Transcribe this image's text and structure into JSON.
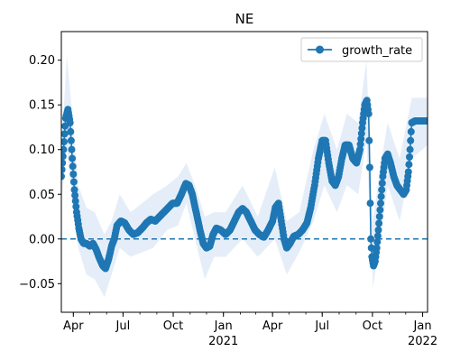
{
  "chart_data": {
    "type": "line",
    "title": "NE",
    "xlabel": "",
    "ylabel": "",
    "x_range": [
      "2020-03-10",
      "2022-01-10"
    ],
    "ylim": [
      -0.082,
      0.232
    ],
    "y_ticks": [
      -0.05,
      0.0,
      0.05,
      0.1,
      0.15,
      0.2
    ],
    "y_tick_labels": [
      "−0.05",
      "0.00",
      "0.05",
      "0.10",
      "0.15",
      "0.20"
    ],
    "x_ticks": [
      {
        "date": "2020-04-01",
        "label": "Apr",
        "sublabel": ""
      },
      {
        "date": "2020-07-01",
        "label": "Jul",
        "sublabel": ""
      },
      {
        "date": "2020-10-01",
        "label": "Oct",
        "sublabel": ""
      },
      {
        "date": "2021-01-01",
        "label": "Jan",
        "sublabel": "2021"
      },
      {
        "date": "2021-04-01",
        "label": "Apr",
        "sublabel": ""
      },
      {
        "date": "2021-07-01",
        "label": "Jul",
        "sublabel": ""
      },
      {
        "date": "2021-10-01",
        "label": "Oct",
        "sublabel": ""
      },
      {
        "date": "2022-01-01",
        "label": "Jan",
        "sublabel": "2022"
      }
    ],
    "grid": false,
    "legend_position": "top-right",
    "reference_line": {
      "y": 0.0,
      "style": "dashed",
      "color": "#1f77b4"
    },
    "colors": {
      "series": "#1f77b4",
      "band": "#dce8f5"
    },
    "series": [
      {
        "name": "growth_rate",
        "marker": "circle",
        "points": [
          [
            "2020-03-10",
            0.07
          ],
          [
            "2020-03-14",
            0.1
          ],
          [
            "2020-03-18",
            0.135
          ],
          [
            "2020-03-22",
            0.145
          ],
          [
            "2020-03-26",
            0.13
          ],
          [
            "2020-03-30",
            0.09
          ],
          [
            "2020-04-03",
            0.055
          ],
          [
            "2020-04-07",
            0.03
          ],
          [
            "2020-04-11",
            0.012
          ],
          [
            "2020-04-15",
            0.0
          ],
          [
            "2020-04-20",
            -0.005
          ],
          [
            "2020-04-25",
            -0.005
          ],
          [
            "2020-05-01",
            -0.008
          ],
          [
            "2020-05-07",
            -0.005
          ],
          [
            "2020-05-13",
            -0.012
          ],
          [
            "2020-05-19",
            -0.022
          ],
          [
            "2020-05-25",
            -0.03
          ],
          [
            "2020-05-30",
            -0.033
          ],
          [
            "2020-06-05",
            -0.022
          ],
          [
            "2020-06-10",
            -0.008
          ],
          [
            "2020-06-15",
            0.0
          ],
          [
            "2020-06-20",
            0.015
          ],
          [
            "2020-06-27",
            0.02
          ],
          [
            "2020-07-04",
            0.018
          ],
          [
            "2020-07-12",
            0.01
          ],
          [
            "2020-07-20",
            0.005
          ],
          [
            "2020-07-28",
            0.007
          ],
          [
            "2020-08-05",
            0.012
          ],
          [
            "2020-08-13",
            0.018
          ],
          [
            "2020-08-21",
            0.022
          ],
          [
            "2020-08-29",
            0.02
          ],
          [
            "2020-09-06",
            0.025
          ],
          [
            "2020-09-14",
            0.03
          ],
          [
            "2020-09-22",
            0.035
          ],
          [
            "2020-09-30",
            0.04
          ],
          [
            "2020-10-08",
            0.04
          ],
          [
            "2020-10-16",
            0.05
          ],
          [
            "2020-10-24",
            0.062
          ],
          [
            "2020-10-30",
            0.06
          ],
          [
            "2020-11-05",
            0.05
          ],
          [
            "2020-11-12",
            0.03
          ],
          [
            "2020-11-19",
            0.01
          ],
          [
            "2020-11-25",
            -0.005
          ],
          [
            "2020-12-01",
            -0.01
          ],
          [
            "2020-12-07",
            -0.008
          ],
          [
            "2020-12-13",
            0.005
          ],
          [
            "2020-12-19",
            0.012
          ],
          [
            "2020-12-27",
            0.01
          ],
          [
            "2021-01-05",
            0.005
          ],
          [
            "2021-01-13",
            0.01
          ],
          [
            "2021-01-21",
            0.02
          ],
          [
            "2021-01-29",
            0.03
          ],
          [
            "2021-02-05",
            0.034
          ],
          [
            "2021-02-12",
            0.03
          ],
          [
            "2021-02-20",
            0.02
          ],
          [
            "2021-02-28",
            0.01
          ],
          [
            "2021-03-08",
            0.005
          ],
          [
            "2021-03-16",
            0.002
          ],
          [
            "2021-03-24",
            0.01
          ],
          [
            "2021-04-01",
            0.02
          ],
          [
            "2021-04-06",
            0.035
          ],
          [
            "2021-04-12",
            0.04
          ],
          [
            "2021-04-17",
            0.02
          ],
          [
            "2021-04-22",
            0.0
          ],
          [
            "2021-04-27",
            -0.01
          ],
          [
            "2021-05-03",
            -0.005
          ],
          [
            "2021-05-10",
            0.003
          ],
          [
            "2021-05-18",
            0.005
          ],
          [
            "2021-05-26",
            0.01
          ],
          [
            "2021-06-03",
            0.018
          ],
          [
            "2021-06-10",
            0.035
          ],
          [
            "2021-06-17",
            0.06
          ],
          [
            "2021-06-24",
            0.09
          ],
          [
            "2021-07-01",
            0.11
          ],
          [
            "2021-07-07",
            0.11
          ],
          [
            "2021-07-13",
            0.085
          ],
          [
            "2021-07-19",
            0.065
          ],
          [
            "2021-07-25",
            0.06
          ],
          [
            "2021-07-31",
            0.07
          ],
          [
            "2021-08-06",
            0.09
          ],
          [
            "2021-08-12",
            0.105
          ],
          [
            "2021-08-19",
            0.105
          ],
          [
            "2021-08-26",
            0.09
          ],
          [
            "2021-09-02",
            0.085
          ],
          [
            "2021-09-08",
            0.1
          ],
          [
            "2021-09-13",
            0.13
          ],
          [
            "2021-09-17",
            0.15
          ],
          [
            "2021-09-21",
            0.155
          ],
          [
            "2021-09-24",
            0.14
          ],
          [
            "2021-09-26",
            0.08
          ],
          [
            "2021-09-28",
            0.0
          ],
          [
            "2021-09-30",
            -0.02
          ],
          [
            "2021-10-03",
            -0.03
          ],
          [
            "2021-10-06",
            -0.025
          ],
          [
            "2021-10-09",
            -0.01
          ],
          [
            "2021-10-12",
            0.01
          ],
          [
            "2021-10-16",
            0.04
          ],
          [
            "2021-10-20",
            0.07
          ],
          [
            "2021-10-24",
            0.09
          ],
          [
            "2021-10-29",
            0.095
          ],
          [
            "2021-11-03",
            0.085
          ],
          [
            "2021-11-09",
            0.07
          ],
          [
            "2021-11-15",
            0.06
          ],
          [
            "2021-11-21",
            0.055
          ],
          [
            "2021-11-27",
            0.05
          ],
          [
            "2021-12-02",
            0.055
          ],
          [
            "2021-12-06",
            0.075
          ],
          [
            "2021-12-09",
            0.1
          ],
          [
            "2021-12-12",
            0.13
          ],
          [
            "2021-12-18",
            0.132
          ],
          [
            "2021-12-26",
            0.132
          ],
          [
            "2022-01-03",
            0.132
          ],
          [
            "2022-01-10",
            0.132
          ]
        ],
        "band": [
          [
            "2020-03-10",
            0.04,
            0.1
          ],
          [
            "2020-03-20",
            0.1,
            0.205
          ],
          [
            "2020-03-30",
            0.05,
            0.14
          ],
          [
            "2020-04-10",
            -0.01,
            0.06
          ],
          [
            "2020-04-25",
            -0.04,
            0.035
          ],
          [
            "2020-05-10",
            -0.045,
            0.03
          ],
          [
            "2020-05-28",
            -0.065,
            0.005
          ],
          [
            "2020-06-10",
            -0.04,
            0.02
          ],
          [
            "2020-06-25",
            -0.01,
            0.05
          ],
          [
            "2020-07-15",
            -0.02,
            0.03
          ],
          [
            "2020-08-05",
            -0.015,
            0.04
          ],
          [
            "2020-08-25",
            -0.01,
            0.05
          ],
          [
            "2020-09-20",
            0.01,
            0.06
          ],
          [
            "2020-10-10",
            0.015,
            0.07
          ],
          [
            "2020-10-25",
            0.04,
            0.085
          ],
          [
            "2020-11-10",
            0.0,
            0.06
          ],
          [
            "2020-11-28",
            -0.045,
            0.025
          ],
          [
            "2020-12-15",
            -0.02,
            0.03
          ],
          [
            "2021-01-05",
            -0.02,
            0.03
          ],
          [
            "2021-02-05",
            0.0,
            0.06
          ],
          [
            "2021-03-05",
            -0.02,
            0.025
          ],
          [
            "2021-04-05",
            0.0,
            0.08
          ],
          [
            "2021-04-27",
            -0.04,
            0.02
          ],
          [
            "2021-05-20",
            -0.015,
            0.03
          ],
          [
            "2021-06-15",
            0.02,
            0.1
          ],
          [
            "2021-07-05",
            0.06,
            0.14
          ],
          [
            "2021-07-28",
            0.03,
            0.1
          ],
          [
            "2021-08-15",
            0.06,
            0.14
          ],
          [
            "2021-09-05",
            0.05,
            0.13
          ],
          [
            "2021-09-20",
            0.11,
            0.2
          ],
          [
            "2021-10-02",
            -0.055,
            0.02
          ],
          [
            "2021-10-15",
            0.0,
            0.08
          ],
          [
            "2021-10-29",
            0.06,
            0.13
          ],
          [
            "2021-11-20",
            0.02,
            0.09
          ],
          [
            "2021-12-12",
            0.09,
            0.158
          ],
          [
            "2022-01-10",
            0.105,
            0.158
          ]
        ]
      }
    ]
  }
}
